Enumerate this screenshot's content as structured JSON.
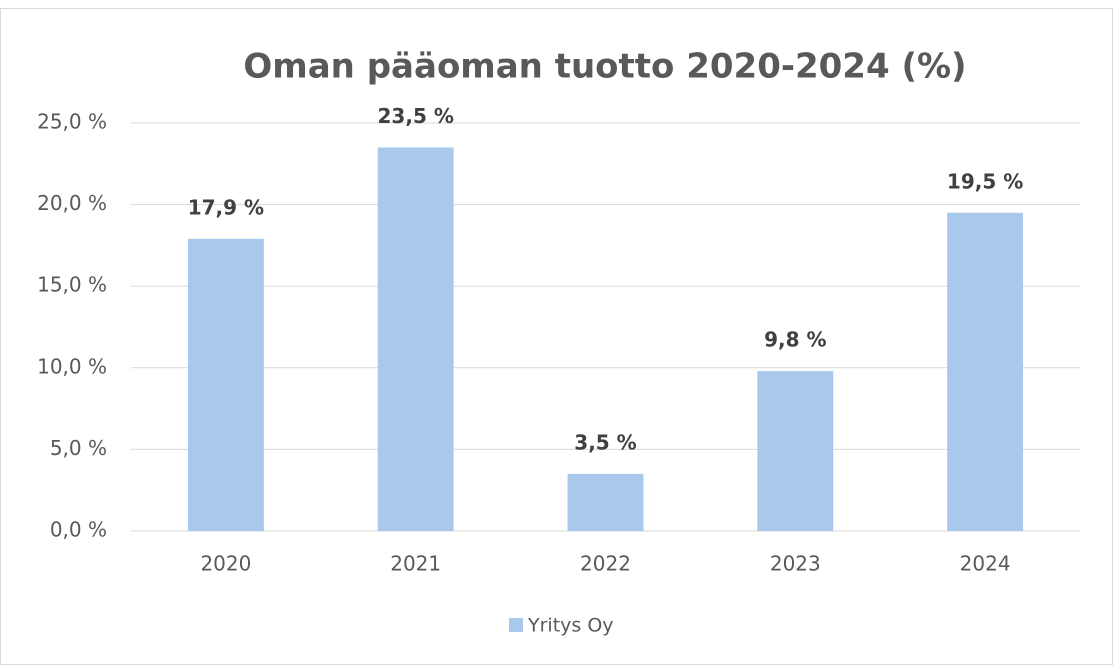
{
  "chart_data": {
    "type": "bar",
    "title": "Oman pääoman tuotto 2020-2024 (%)",
    "categories": [
      "2020",
      "2021",
      "2022",
      "2023",
      "2024"
    ],
    "series": [
      {
        "name": "Yritys Oy",
        "color": "#a9c9ec",
        "values": [
          17.9,
          23.5,
          3.5,
          9.8,
          19.5
        ],
        "value_labels": [
          "17,9 %",
          "23,5 %",
          "3,5 %",
          "9,8 %",
          "19,5 %"
        ]
      }
    ],
    "ylim": [
      0,
      25
    ],
    "yticks": [
      {
        "value": 0,
        "label": "0,0 %"
      },
      {
        "value": 5,
        "label": "5,0 %"
      },
      {
        "value": 10,
        "label": "10,0 %"
      },
      {
        "value": 15,
        "label": "15,0 %"
      },
      {
        "value": 20,
        "label": "20,0 %"
      },
      {
        "value": 25,
        "label": "25,0 %"
      }
    ],
    "grid": true,
    "legend": "bottom"
  }
}
